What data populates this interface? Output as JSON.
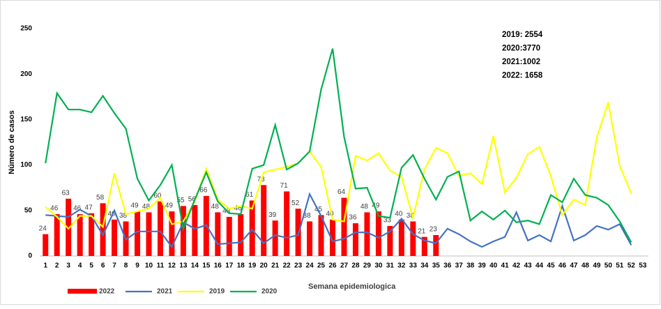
{
  "chart_data": {
    "type": "bar",
    "y_label": "Número de casos",
    "x_label": "Semana epidemiologica",
    "annotations": [
      "2019: 2554",
      "2020:3770",
      "2021:1002",
      "2022: 1658"
    ],
    "categories": [
      1,
      2,
      3,
      4,
      5,
      6,
      7,
      8,
      9,
      10,
      11,
      12,
      13,
      14,
      15,
      16,
      17,
      18,
      19,
      20,
      21,
      22,
      23,
      24,
      25,
      26,
      27,
      28,
      29,
      30,
      31,
      32,
      33,
      34,
      35,
      36,
      37,
      38,
      39,
      40,
      41,
      42,
      43,
      44,
      45,
      46,
      47,
      48,
      49,
      50,
      51,
      52,
      53
    ],
    "ylim": [
      0,
      250
    ],
    "yticks": [
      0,
      50,
      100,
      150,
      200,
      250
    ],
    "grid": false,
    "series": [
      {
        "name": "2022",
        "type": "bar",
        "color": "#ff0000",
        "values": [
          24,
          46,
          63,
          46,
          47,
          58,
          40,
          38,
          49,
          48,
          60,
          49,
          55,
          56,
          66,
          48,
          43,
          46,
          61,
          78,
          39,
          71,
          52,
          38,
          45,
          40,
          64,
          36,
          48,
          49,
          33,
          40,
          38,
          21,
          23,
          null,
          null,
          null,
          null,
          null,
          null,
          null,
          null,
          null,
          null,
          null,
          null,
          null,
          null,
          null,
          null,
          null,
          null
        ]
      },
      {
        "name": "2021",
        "type": "line",
        "color": "#4472c4",
        "values": [
          45,
          44,
          43,
          51,
          44,
          23,
          50,
          18,
          27,
          27,
          27,
          10,
          37,
          30,
          34,
          13,
          14,
          15,
          29,
          14,
          23,
          20,
          23,
          68,
          44,
          16,
          19,
          26,
          26,
          20,
          27,
          41,
          24,
          17,
          14,
          30,
          24,
          16,
          10,
          16,
          21,
          48,
          17,
          23,
          16,
          55,
          17,
          23,
          33,
          29,
          35,
          12,
          null
        ]
      },
      {
        "name": "2019",
        "type": "line",
        "color": "#ffff00",
        "values": [
          54,
          43,
          30,
          44,
          44,
          32,
          91,
          46,
          49,
          52,
          64,
          35,
          38,
          60,
          96,
          62,
          52,
          55,
          52,
          92,
          95,
          98,
          102,
          115,
          98,
          40,
          38,
          110,
          105,
          113,
          94,
          87,
          42,
          95,
          119,
          113,
          88,
          91,
          79,
          132,
          70,
          86,
          112,
          120,
          88,
          45,
          62,
          56,
          130,
          169,
          99,
          69,
          null
        ]
      },
      {
        "name": "2020",
        "type": "line",
        "color": "#00b050",
        "values": [
          102,
          179,
          161,
          161,
          158,
          176,
          157,
          140,
          85,
          61,
          78,
          100,
          30,
          62,
          92,
          60,
          47,
          46,
          96,
          100,
          144,
          95,
          102,
          115,
          183,
          228,
          131,
          74,
          75,
          44,
          42,
          97,
          111,
          85,
          62,
          87,
          93,
          39,
          49,
          40,
          50,
          37,
          39,
          35,
          67,
          59,
          85,
          67,
          64,
          56,
          38,
          15,
          null
        ]
      }
    ]
  }
}
